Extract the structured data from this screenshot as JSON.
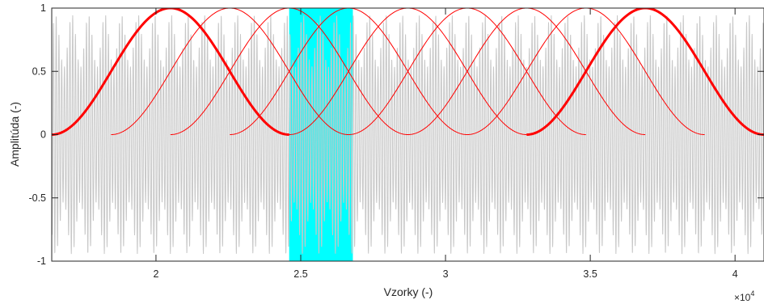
{
  "chart_data": {
    "type": "line",
    "xlabel": "Vzorky (-)",
    "ylabel": "Amplitúda (-)",
    "x_multiplier_label": "×10",
    "x_multiplier_exp": "4",
    "xlim": [
      16400,
      41000
    ],
    "ylim": [
      -1,
      1
    ],
    "x_ticks": [
      20000,
      25000,
      30000,
      35000,
      40000
    ],
    "x_tick_labels": [
      "2",
      "2.5",
      "3",
      "3.5",
      "4"
    ],
    "y_ticks": [
      -1,
      -0.5,
      0,
      0.5,
      1
    ],
    "y_tick_labels": [
      "-1",
      "-0.5",
      "0",
      "0.5",
      "1"
    ],
    "grid": false,
    "background_signal": {
      "color": "#c8c8c8",
      "carrier_amplitude": 0.95,
      "sample_range": [
        16400,
        41000
      ]
    },
    "highlight_region": {
      "x": [
        24600,
        26800
      ],
      "color": "#00ffff"
    },
    "windows": {
      "color": "#ff0000",
      "length": 8200,
      "starts": [
        16400,
        18450,
        20500,
        22550,
        24600,
        26650,
        28700,
        30750,
        32800
      ],
      "bold_starts": [
        16400,
        32800
      ],
      "peak_value": 1
    }
  }
}
